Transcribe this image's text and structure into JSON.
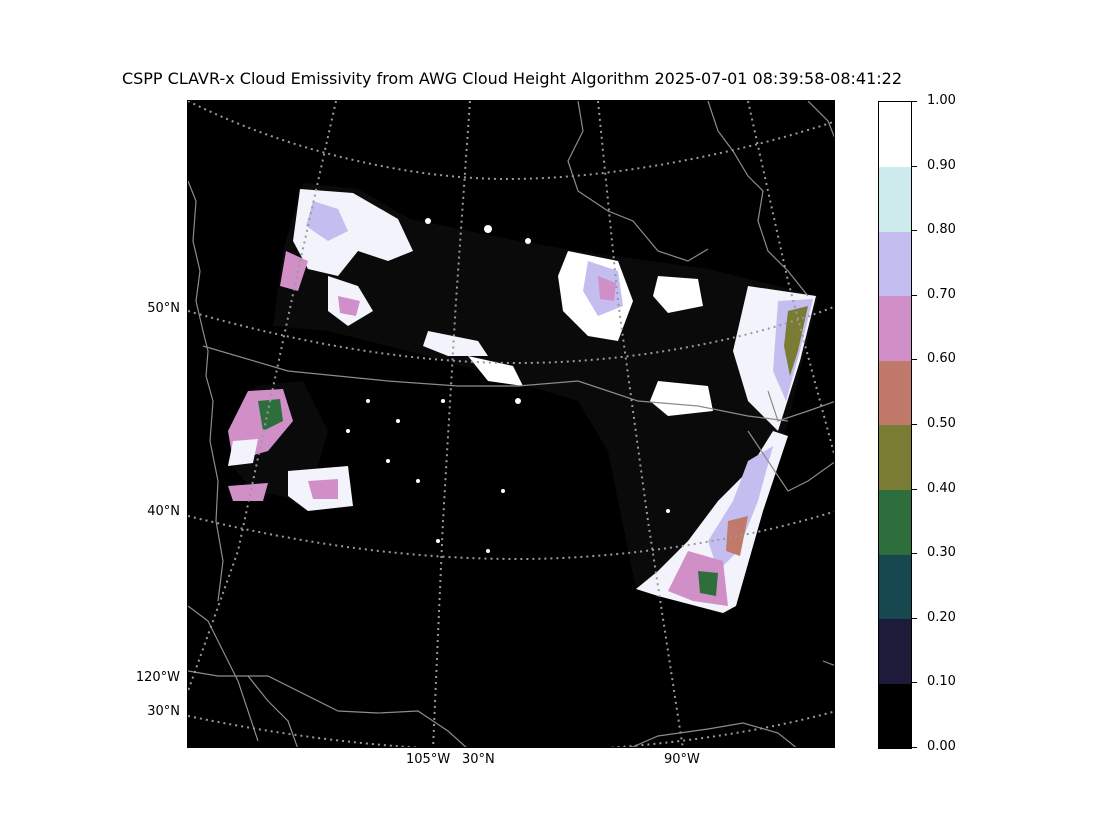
{
  "title": "CSPP CLAVR-x Cloud Emissivity from AWG Cloud Height Algorithm 2025-07-01 08:39:58-08:41:22",
  "map": {
    "background": "#000000",
    "graticule_color": "#8c8c8c",
    "coastline_color": "#8c8c8c",
    "lat_labels": [
      "50°N",
      "40°N",
      "30°N"
    ],
    "lon_labels_left": [
      "120°W"
    ],
    "lon_labels_bottom": [
      "105°W",
      "30°N",
      "90°W"
    ]
  },
  "colorbar": {
    "min": 0.0,
    "max": 1.0,
    "tick_labels": [
      "1.00",
      "0.90",
      "0.80",
      "0.70",
      "0.60",
      "0.50",
      "0.40",
      "0.30",
      "0.20",
      "0.10",
      "0.00"
    ],
    "segments": [
      {
        "from": 0.0,
        "to": 0.1,
        "color": "#000000"
      },
      {
        "from": 0.1,
        "to": 0.2,
        "color": "#1e1a3a"
      },
      {
        "from": 0.2,
        "to": 0.3,
        "color": "#17484f"
      },
      {
        "from": 0.3,
        "to": 0.4,
        "color": "#2e6e3c"
      },
      {
        "from": 0.4,
        "to": 0.5,
        "color": "#7a7c34"
      },
      {
        "from": 0.5,
        "to": 0.6,
        "color": "#c17a6a"
      },
      {
        "from": 0.6,
        "to": 0.7,
        "color": "#d18fc8"
      },
      {
        "from": 0.7,
        "to": 0.8,
        "color": "#c4bdf0"
      },
      {
        "from": 0.8,
        "to": 0.9,
        "color": "#cdeaed"
      },
      {
        "from": 0.9,
        "to": 1.0,
        "color": "#ffffff"
      }
    ]
  }
}
